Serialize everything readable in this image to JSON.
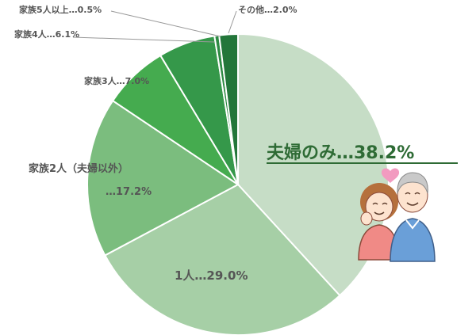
{
  "chart_data": {
    "type": "pie",
    "start": "12 o'clock",
    "direction": "clockwise",
    "slices": [
      {
        "label": "夫婦のみ…38.2%",
        "value": 38.2,
        "color": "#c6ddc6"
      },
      {
        "label": "1人…29.0%",
        "value": 29.0,
        "color": "#a6cfa6"
      },
      {
        "label": "家族2人（夫婦以外）",
        "label2": "…17.2%",
        "value": 17.2,
        "color": "#7bbd7e"
      },
      {
        "label": "家族3人…7.0%",
        "value": 7.0,
        "color": "#45ab4f"
      },
      {
        "label": "家族4人…6.1%",
        "value": 6.1,
        "color": "#35984a"
      },
      {
        "label": "家族5人以上…0.5%",
        "value": 0.5,
        "color": "#2d8a43"
      },
      {
        "label": "その他…2.0%",
        "value": 2.0,
        "color": "#23763a"
      }
    ],
    "highlight_color": "#2e6b35",
    "slice_border_color": "#ffffff"
  },
  "illustration": {
    "name": "elderly-couple",
    "heart_color": "#f29bc0"
  }
}
